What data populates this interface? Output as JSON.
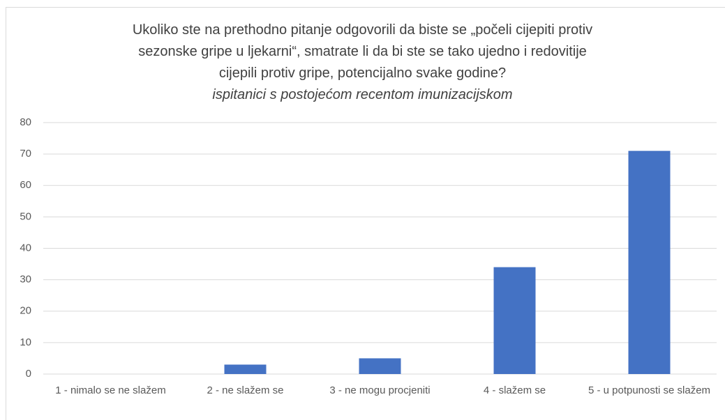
{
  "chart_data": {
    "type": "bar",
    "title": [
      "Ukoliko ste na prethodno pitanje odgovorili da biste se „počeli cijepiti protiv",
      "sezonske gripe u ljekarni“, smatrate li da bi ste se tako ujedno i redovitije",
      "cijepili protiv gripe, potencijalno svake godine?"
    ],
    "subtitle": "ispitanici s postojećom recentom imunizacijskom",
    "categories": [
      "1 - nimalo se ne slažem",
      "2 - ne slažem se",
      "3 - ne mogu procjeniti",
      "4 - slažem se",
      "5 - u potpunosti se slažem"
    ],
    "values": [
      0,
      3,
      5,
      34,
      71
    ],
    "color": "#4472c4",
    "ylim": [
      0,
      80
    ],
    "yticks": [
      0,
      10,
      20,
      30,
      40,
      50,
      60,
      70,
      80
    ],
    "grid": true
  }
}
